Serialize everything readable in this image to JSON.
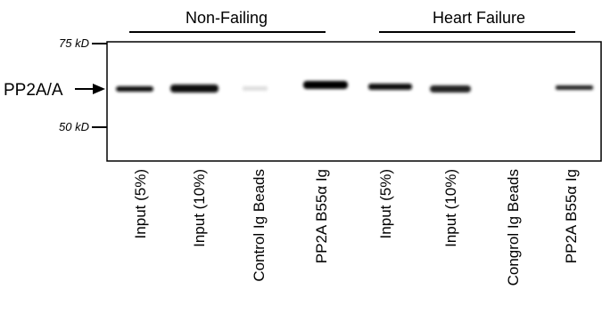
{
  "figure": {
    "groups": [
      "Non-Failing",
      "Heart Failure"
    ],
    "markers": [
      "75 kD",
      "50 kD"
    ],
    "band_label": "PP2A/A",
    "lanes": [
      "Input (5%)",
      "Input (10%)",
      "Control Ig Beads",
      "PP2A B55α Ig",
      "Input (5%)",
      "Input (10%)",
      "Congrol Ig Beads",
      "PP2A B55α Ig"
    ]
  }
}
